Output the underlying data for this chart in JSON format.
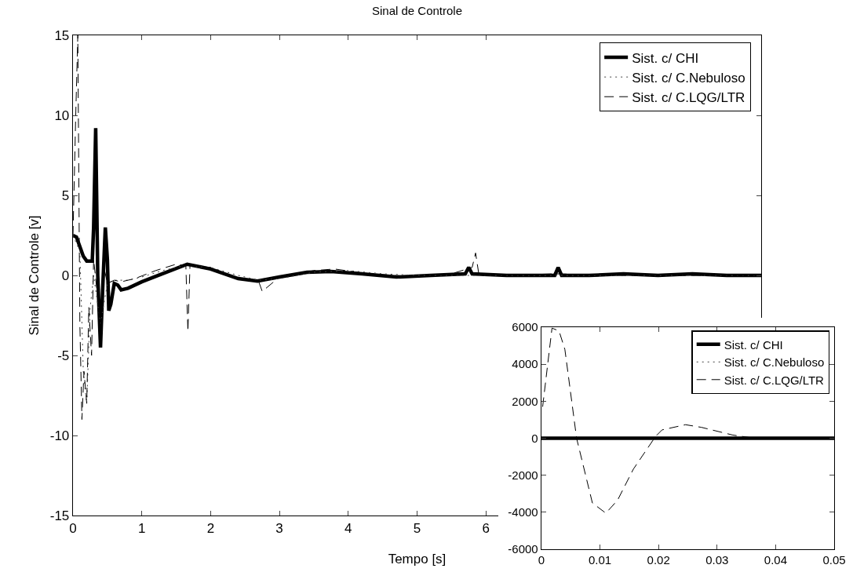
{
  "chart_data": [
    {
      "type": "line",
      "title": "Sinal de Controle",
      "xlabel": "Tempo [s]",
      "ylabel": "Sinal de Controle [v]",
      "xlim": [
        0,
        10
      ],
      "xticks": [
        0,
        1,
        2,
        3,
        4,
        5,
        6
      ],
      "ylim": [
        -15,
        15
      ],
      "yticks": [
        -15,
        -10,
        -5,
        0,
        5,
        10,
        15
      ],
      "grid": false,
      "legend": "top right",
      "series": [
        {
          "name": "Sist. c/ CHI",
          "color": "#000000",
          "line_style": "solid",
          "x": [
            0,
            0.05,
            0.15,
            0.2,
            0.28,
            0.3,
            0.33,
            0.36,
            0.4,
            0.43,
            0.47,
            0.5,
            0.52,
            0.55,
            0.6,
            0.65,
            0.7,
            0.8,
            1.0,
            1.3,
            1.66,
            2.0,
            2.4,
            2.68,
            3.0,
            3.4,
            3.75,
            4.2,
            4.7,
            5.2,
            5.7,
            5.75,
            5.8,
            6.3,
            7.0,
            7.05,
            7.1,
            7.5,
            8.0,
            8.5,
            9.0,
            9.5,
            10
          ],
          "values": [
            2.5,
            2.4,
            1.2,
            0.9,
            0.9,
            3,
            9.2,
            0,
            -4.5,
            -1,
            3,
            1,
            -2.2,
            -1.8,
            -0.5,
            -0.6,
            -0.9,
            -0.8,
            -0.4,
            0.1,
            0.7,
            0.4,
            -0.2,
            -0.35,
            -0.1,
            0.2,
            0.25,
            0.1,
            -0.1,
            0,
            0.1,
            0.5,
            0.1,
            0,
            0,
            0.5,
            0,
            0,
            0.1,
            0,
            0.1,
            0,
            0
          ]
        },
        {
          "name": "Sist. c/ C.Nebuloso",
          "color": "#404040",
          "line_style": "dotted",
          "x": [
            0,
            0.1,
            0.15,
            0.2,
            0.25,
            0.3,
            0.4,
            0.5,
            0.6,
            0.8,
            1.0,
            1.3,
            1.6,
            2.0,
            2.4,
            2.7,
            3.0,
            3.5,
            4.0,
            4.5,
            5,
            6,
            7,
            8,
            9,
            10
          ],
          "values": [
            2.5,
            1.5,
            -6,
            -8,
            -2,
            0,
            -3,
            -0.5,
            -0.3,
            -0.3,
            -0.1,
            0.3,
            0.6,
            0.5,
            0,
            -0.3,
            -0.2,
            0.2,
            0.3,
            0.1,
            0,
            0,
            0,
            0,
            0,
            0
          ]
        },
        {
          "name": "Sist. c/ C.LQG/LTR",
          "color": "#000000",
          "line_style": "dashed",
          "x": [
            0,
            0.04,
            0.07,
            0.1,
            0.13,
            0.16,
            0.2,
            0.23,
            0.27,
            0.3,
            0.35,
            0.4,
            0.45,
            0.5,
            0.6,
            0.7,
            0.9,
            1.2,
            1.5,
            1.64,
            1.67,
            1.7,
            2.0,
            2.4,
            2.7,
            2.75,
            3.0,
            3.5,
            3.8,
            4.3,
            5.0,
            5.5,
            5.8,
            5.85,
            5.9,
            6.3,
            7,
            8,
            9,
            10
          ],
          "values": [
            2.5,
            10,
            15,
            -3,
            -9,
            -6,
            -8,
            -2,
            -5,
            1,
            -1,
            -3,
            0.5,
            -0.5,
            -0.3,
            -0.4,
            -0.2,
            0.3,
            0.7,
            0.6,
            -3.5,
            0.6,
            0.5,
            -0.2,
            -0.4,
            -1,
            -0.1,
            0.3,
            0.4,
            0.1,
            -0.1,
            0.1,
            0.5,
            1.4,
            0,
            0,
            0.1,
            0,
            0,
            0
          ]
        }
      ]
    },
    {
      "type": "line",
      "xlim": [
        0,
        0.05
      ],
      "xticks": [
        0,
        0.01,
        0.02,
        0.03,
        0.04,
        0.05
      ],
      "ylim": [
        -6000,
        6000
      ],
      "yticks": [
        -6000,
        -4000,
        -2000,
        0,
        2000,
        4000,
        6000
      ],
      "grid": false,
      "legend": "top right",
      "series": [
        {
          "name": "Sist. c/ CHI",
          "color": "#000000",
          "line_style": "solid",
          "x": [
            0,
            0.05
          ],
          "values": [
            0,
            0
          ]
        },
        {
          "name": "Sist. c/ C.Nebuloso",
          "color": "#404040",
          "line_style": "dotted"
        },
        {
          "name": "Sist. c/ C.LQG/LTR",
          "color": "#000000",
          "line_style": "dashed",
          "x": [
            0.0002,
            0.0018,
            0.003,
            0.004,
            0.006,
            0.0087,
            0.011,
            0.013,
            0.0157,
            0.0195,
            0.0206,
            0.0246,
            0.0273,
            0.0327,
            0.036,
            0.05
          ],
          "values": [
            1700,
            5950,
            5800,
            4800,
            0,
            -3500,
            -4050,
            -3350,
            -1670,
            100,
            450,
            730,
            590,
            170,
            20,
            0
          ]
        }
      ]
    }
  ]
}
